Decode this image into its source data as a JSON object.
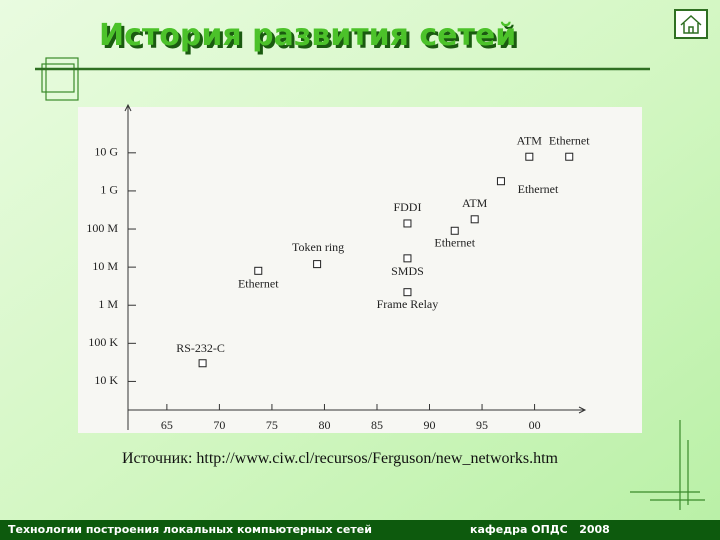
{
  "title": "История развития сетей",
  "source": "Источник: http://www.ciw.cl/recursos/Ferguson/new_networks.htm",
  "footer": {
    "left": "Технологии построения локальных компьютерных сетей",
    "right": "кафедра ОПДС   2008"
  },
  "chart_data": {
    "type": "scatter",
    "x": [
      1968.4,
      1973.7,
      1979.3,
      1987.9,
      1987.9,
      1987.9,
      1992.4,
      1994.3,
      1996.8,
      1999.5,
      2003.3
    ],
    "values": [
      30000,
      8000000,
      12000000,
      140000000,
      17000000,
      2200000,
      90000000,
      180000000,
      1800000000,
      7900000000,
      7900000000
    ],
    "point_labels": [
      "RS-232-C",
      "Ethernet",
      "Token ring",
      "FDDI",
      "SMDS",
      "Frame Relay",
      "Ethernet",
      "ATM",
      "Ethernet",
      "ATM",
      "Ethernet"
    ],
    "log_y": true,
    "xlim": [
      1961.3,
      2004.8
    ],
    "ylim": [
      1778,
      180000000000.0
    ],
    "xticks": [
      {
        "value": 1965,
        "label": "65"
      },
      {
        "value": 1970,
        "label": "70"
      },
      {
        "value": 1975,
        "label": "75"
      },
      {
        "value": 1980,
        "label": "80"
      },
      {
        "value": 1985,
        "label": "85"
      },
      {
        "value": 1990,
        "label": "90"
      },
      {
        "value": 1995,
        "label": "95"
      },
      {
        "value": 2000,
        "label": "00"
      }
    ],
    "yticks": [
      {
        "value": 10000,
        "label": "10 K"
      },
      {
        "value": 100000,
        "label": "100 K"
      },
      {
        "value": 1000000,
        "label": "1 M"
      },
      {
        "value": 10000000,
        "label": "10 M"
      },
      {
        "value": 100000000,
        "label": "100 M"
      },
      {
        "value": 1000000000,
        "label": "1 G"
      },
      {
        "value": 10000000000,
        "label": "10 G"
      }
    ]
  }
}
